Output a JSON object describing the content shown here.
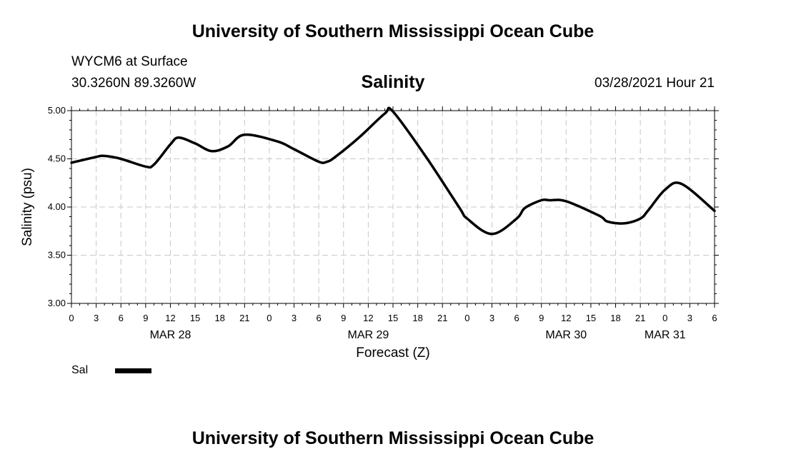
{
  "header": {
    "title": "University of Southern Mississippi Ocean Cube",
    "station": "WYCM6 at Surface",
    "coords": "30.3260N  89.3260W",
    "chart_title": "Salinity",
    "datetime": "03/28/2021 Hour 21"
  },
  "footer": {
    "title": "University of Southern Mississippi Ocean Cube"
  },
  "legend": {
    "label": "Sal",
    "color": "#000000"
  },
  "chart_data": {
    "type": "line",
    "xlabel": "Forecast (Z)",
    "ylabel": "Salinity (psu)",
    "ylim": [
      3.0,
      5.0
    ],
    "yticks": [
      "3.00",
      "3.50",
      "4.00",
      "4.50",
      "5.00"
    ],
    "xlim": [
      0,
      78
    ],
    "xtick_labels": [
      "0",
      "3",
      "6",
      "9",
      "12",
      "15",
      "18",
      "21",
      "0",
      "3",
      "6",
      "9",
      "12",
      "15",
      "18",
      "21",
      "0",
      "3",
      "6",
      "9",
      "12",
      "15",
      "18",
      "21",
      "0",
      "3",
      "6"
    ],
    "date_labels": [
      {
        "label": "MAR 28",
        "hour": 12
      },
      {
        "label": "MAR 29",
        "hour": 36
      },
      {
        "label": "MAR 30",
        "hour": 60
      },
      {
        "label": "MAR 31",
        "hour": 72
      }
    ],
    "grid": true,
    "series": [
      {
        "name": "Sal",
        "x": [
          0,
          3,
          4,
          6,
          9,
          10,
          12,
          13,
          15,
          17,
          19,
          21,
          25,
          27,
          30,
          31,
          32,
          35,
          38,
          39,
          43,
          47,
          48,
          51,
          54,
          55,
          57,
          58,
          60,
          64,
          65,
          67,
          69,
          70,
          72,
          74,
          78
        ],
        "y": [
          4.46,
          4.52,
          4.53,
          4.5,
          4.42,
          4.44,
          4.65,
          4.72,
          4.66,
          4.58,
          4.63,
          4.75,
          4.68,
          4.6,
          4.47,
          4.47,
          4.52,
          4.73,
          4.97,
          4.99,
          4.52,
          4.0,
          3.88,
          3.72,
          3.88,
          3.99,
          4.07,
          4.07,
          4.06,
          3.91,
          3.85,
          3.83,
          3.88,
          3.97,
          4.18,
          4.24,
          3.96
        ]
      }
    ]
  }
}
